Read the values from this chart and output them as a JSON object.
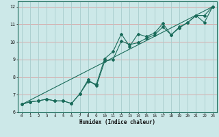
{
  "xlabel": "Humidex (Indice chaleur)",
  "xlim": [
    -0.5,
    23.5
  ],
  "ylim": [
    6,
    12.3
  ],
  "yticks": [
    6,
    7,
    8,
    9,
    10,
    11,
    12
  ],
  "xticks": [
    0,
    1,
    2,
    3,
    4,
    5,
    6,
    7,
    8,
    9,
    10,
    11,
    12,
    13,
    14,
    15,
    16,
    17,
    18,
    19,
    20,
    21,
    22,
    23
  ],
  "bg_color": "#cce8e8",
  "hgrid_color": "#d8a0a0",
  "vgrid_color": "#a8cccc",
  "line_color": "#1a6b5a",
  "line1_x": [
    0,
    1,
    2,
    3,
    4,
    5,
    6,
    7,
    8,
    9,
    10,
    11,
    12,
    13,
    14,
    15,
    16,
    17,
    18,
    19,
    20,
    21,
    22,
    23
  ],
  "line1_y": [
    6.45,
    6.6,
    6.65,
    6.75,
    6.65,
    6.65,
    6.5,
    7.05,
    7.75,
    7.6,
    9.05,
    9.45,
    10.45,
    9.75,
    10.45,
    10.3,
    10.5,
    11.05,
    10.4,
    10.8,
    11.1,
    11.5,
    11.1,
    12.0
  ],
  "line2_x": [
    0,
    1,
    2,
    3,
    4,
    5,
    6,
    7,
    8,
    9,
    10,
    11,
    12,
    13,
    14,
    15,
    16,
    17,
    18,
    19,
    20,
    21,
    22,
    23
  ],
  "line2_y": [
    6.45,
    6.6,
    6.65,
    6.75,
    6.65,
    6.65,
    6.5,
    7.05,
    7.85,
    7.5,
    8.9,
    9.0,
    10.05,
    9.85,
    9.95,
    10.2,
    10.4,
    10.85,
    10.4,
    10.85,
    11.1,
    11.5,
    11.5,
    12.0
  ],
  "line3_x": [
    0,
    23
  ],
  "line3_y": [
    6.45,
    12.0
  ],
  "figsize": [
    3.2,
    2.0
  ],
  "dpi": 100
}
